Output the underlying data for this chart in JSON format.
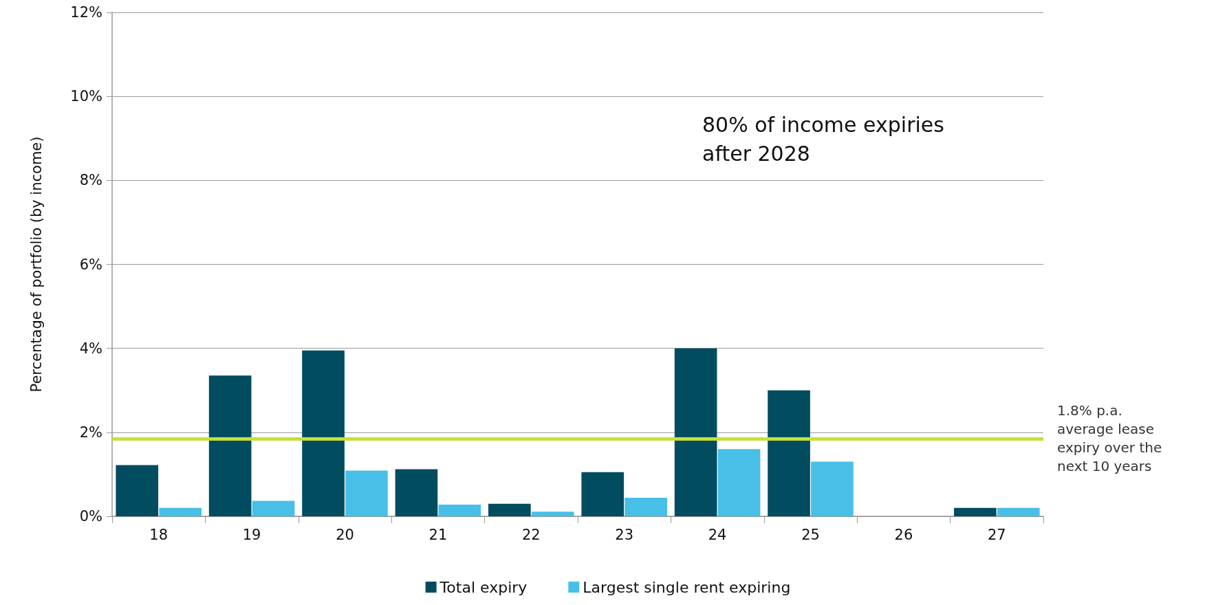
{
  "chart_data": {
    "type": "bar",
    "ylabel": "Percentage of portfolio (by income)",
    "categories": [
      "18",
      "19",
      "20",
      "21",
      "22",
      "23",
      "24",
      "25",
      "26",
      "27"
    ],
    "series": [
      {
        "name": "Total expiry",
        "color": "#024c5f",
        "values": [
          1.22,
          3.35,
          3.95,
          1.12,
          0.3,
          1.05,
          4.0,
          3.0,
          0,
          0.2
        ]
      },
      {
        "name": "Largest single rent expiring",
        "color": "#48bfe6",
        "values": [
          0.2,
          0.37,
          1.09,
          0.28,
          0.11,
          0.44,
          1.6,
          1.3,
          0,
          0.2
        ]
      }
    ],
    "ylim": [
      0,
      12
    ],
    "yticks": [
      {
        "value": 0,
        "label": "0%"
      },
      {
        "value": 2,
        "label": "2%"
      },
      {
        "value": 4,
        "label": "4%"
      },
      {
        "value": 6,
        "label": "6%"
      },
      {
        "value": 8,
        "label": "8%"
      },
      {
        "value": 10,
        "label": "10%"
      },
      {
        "value": 12,
        "label": "12%"
      }
    ],
    "ref_lines": [
      {
        "axis": "y",
        "value": 1.85,
        "label": "1.8% p.a. average lease expiry over the next 10 years",
        "color": "#c5e03a"
      }
    ],
    "annotations": [
      "80% of income expiries after 2028"
    ],
    "grid": "y",
    "legend": "bottom"
  }
}
